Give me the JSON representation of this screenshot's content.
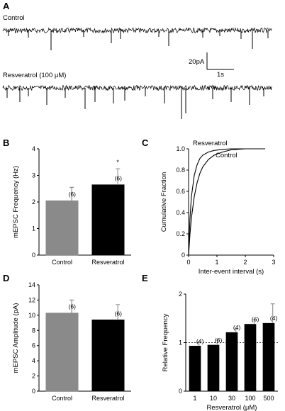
{
  "panels": {
    "A": {
      "letter": "A",
      "trace_labels": [
        "Control",
        "Resveratrol (100 μM)"
      ],
      "scale_bar": {
        "current": "20pA",
        "time": "1s"
      }
    },
    "B": {
      "letter": "B"
    },
    "C": {
      "letter": "C"
    },
    "D": {
      "letter": "D"
    },
    "E": {
      "letter": "E"
    }
  },
  "chart_data": [
    {
      "panel": "B",
      "type": "bar",
      "categories": [
        "Control",
        "Resveratrol"
      ],
      "values": [
        2.05,
        2.65
      ],
      "errors": [
        0.5,
        0.6
      ],
      "bar_colors": [
        "#8a8a8a",
        "#000000"
      ],
      "n_labels": [
        "(6)",
        "(6)"
      ],
      "significance": [
        "",
        "*"
      ],
      "xlabel": "",
      "ylabel": "mEPSC Frequency (Hz)",
      "ylim": [
        0,
        4
      ],
      "yticks": [
        "0",
        "1",
        "2",
        "3",
        "4"
      ]
    },
    {
      "panel": "C",
      "type": "line",
      "series": [
        {
          "name": "Resveratrol",
          "x": [
            0,
            0.05,
            0.1,
            0.2,
            0.3,
            0.4,
            0.5,
            0.7,
            0.9,
            1.2,
            1.5,
            2.0,
            2.7
          ],
          "y": [
            0,
            0.35,
            0.55,
            0.75,
            0.85,
            0.91,
            0.94,
            0.97,
            0.985,
            0.995,
            1.0,
            1.0,
            1.0
          ]
        },
        {
          "name": "Control",
          "x": [
            0,
            0.05,
            0.1,
            0.2,
            0.3,
            0.4,
            0.5,
            0.7,
            0.9,
            1.2,
            1.5,
            2.0,
            2.7
          ],
          "y": [
            0,
            0.2,
            0.35,
            0.55,
            0.68,
            0.77,
            0.83,
            0.9,
            0.94,
            0.97,
            0.99,
            1.0,
            1.0
          ]
        }
      ],
      "xlabel": "Inter-event interval (s)",
      "ylabel": "Cumulative Fraction",
      "xlim": [
        0,
        3
      ],
      "ylim": [
        0,
        1.0
      ],
      "xticks": [
        "0",
        "1",
        "2",
        "3"
      ],
      "yticks": [
        "0",
        "0.2",
        "0.4",
        "0.6",
        "0.8",
        "1.0"
      ]
    },
    {
      "panel": "D",
      "type": "bar",
      "categories": [
        "Control",
        "Resveratrol"
      ],
      "values": [
        10.3,
        9.4
      ],
      "errors": [
        1.7,
        2.0
      ],
      "bar_colors": [
        "#8a8a8a",
        "#000000"
      ],
      "n_labels": [
        "(6)",
        "(6)"
      ],
      "xlabel": "",
      "ylabel": "mEPSC Amplitude (pA)",
      "ylim": [
        0,
        14
      ],
      "yticks": [
        "0",
        "2",
        "4",
        "6",
        "8",
        "10",
        "12",
        "14"
      ]
    },
    {
      "panel": "E",
      "type": "bar",
      "categories": [
        "1",
        "10",
        "30",
        "100",
        "500"
      ],
      "values": [
        0.93,
        0.95,
        1.21,
        1.38,
        1.4
      ],
      "errors": [
        0.08,
        0.1,
        0.07,
        0.09,
        0.4
      ],
      "bar_colors": [
        "#000000",
        "#000000",
        "#000000",
        "#000000",
        "#000000"
      ],
      "n_labels": [
        "(4)",
        "(6)",
        "(4)",
        "(6)",
        "(4)"
      ],
      "reference_line": 1,
      "xlabel": "Resveratrol (μM)",
      "ylabel": "Relative Frequency",
      "ylim": [
        0,
        2
      ],
      "yticks": [
        "0",
        "1",
        "2"
      ]
    }
  ]
}
